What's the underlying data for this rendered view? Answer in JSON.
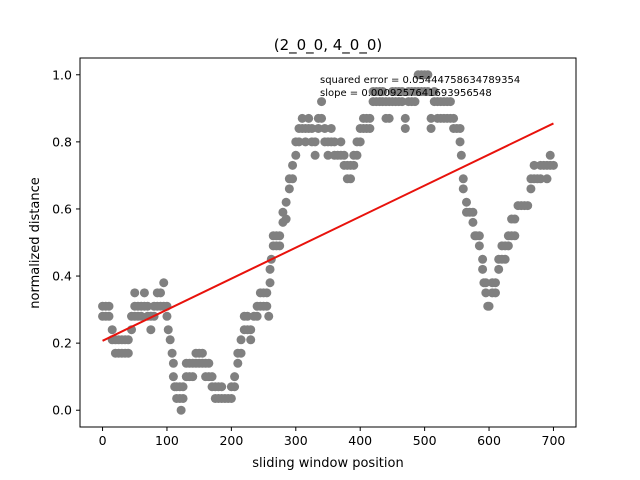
{
  "chart_data": {
    "type": "scatter",
    "title": "(2_0_0, 4_0_0)",
    "xlabel": "sliding window position",
    "ylabel": "normalized distance",
    "xlim": [
      -35,
      735
    ],
    "ylim": [
      -0.05,
      1.05
    ],
    "xticks": [
      0,
      100,
      200,
      300,
      400,
      500,
      600,
      700
    ],
    "yticks": [
      0.0,
      0.2,
      0.4,
      0.6,
      0.8,
      1.0
    ],
    "xtick_labels": [
      "0",
      "100",
      "200",
      "300",
      "400",
      "500",
      "600",
      "700"
    ],
    "ytick_labels": [
      "0.0",
      "0.2",
      "0.4",
      "0.6",
      "0.8",
      "1.0"
    ],
    "grid": false,
    "annotations": [
      "squared error = 0.05444758634789354",
      "slope = 0.0009257641693956548"
    ],
    "colors": {
      "points": "#808080",
      "fit": "#e8120c"
    },
    "fit_line": {
      "x": [
        0,
        700
      ],
      "y": [
        0.207,
        0.855
      ]
    },
    "points": [
      [
        0,
        0.31
      ],
      [
        0,
        0.28
      ],
      [
        5,
        0.31
      ],
      [
        5,
        0.28
      ],
      [
        10,
        0.31
      ],
      [
        10,
        0.28
      ],
      [
        15,
        0.24
      ],
      [
        15,
        0.21
      ],
      [
        20,
        0.21
      ],
      [
        20,
        0.17
      ],
      [
        25,
        0.17
      ],
      [
        25,
        0.21
      ],
      [
        30,
        0.21
      ],
      [
        30,
        0.17
      ],
      [
        35,
        0.21
      ],
      [
        35,
        0.17
      ],
      [
        40,
        0.21
      ],
      [
        40,
        0.17
      ],
      [
        45,
        0.24
      ],
      [
        45,
        0.28
      ],
      [
        50,
        0.31
      ],
      [
        50,
        0.35
      ],
      [
        50,
        0.28
      ],
      [
        55,
        0.31
      ],
      [
        55,
        0.28
      ],
      [
        60,
        0.31
      ],
      [
        60,
        0.28
      ],
      [
        65,
        0.35
      ],
      [
        65,
        0.31
      ],
      [
        70,
        0.31
      ],
      [
        70,
        0.28
      ],
      [
        75,
        0.28
      ],
      [
        75,
        0.24
      ],
      [
        80,
        0.31
      ],
      [
        80,
        0.28
      ],
      [
        85,
        0.35
      ],
      [
        85,
        0.31
      ],
      [
        90,
        0.35
      ],
      [
        90,
        0.31
      ],
      [
        95,
        0.38
      ],
      [
        95,
        0.31
      ],
      [
        100,
        0.31
      ],
      [
        100,
        0.28
      ],
      [
        102,
        0.24
      ],
      [
        105,
        0.21
      ],
      [
        108,
        0.17
      ],
      [
        110,
        0.14
      ],
      [
        110,
        0.1
      ],
      [
        112,
        0.07
      ],
      [
        115,
        0.07
      ],
      [
        115,
        0.035
      ],
      [
        120,
        0.07
      ],
      [
        120,
        0.035
      ],
      [
        122,
        0.0
      ],
      [
        125,
        0.07
      ],
      [
        125,
        0.035
      ],
      [
        130,
        0.1
      ],
      [
        130,
        0.14
      ],
      [
        135,
        0.1
      ],
      [
        135,
        0.14
      ],
      [
        140,
        0.14
      ],
      [
        140,
        0.1
      ],
      [
        145,
        0.17
      ],
      [
        145,
        0.14
      ],
      [
        150,
        0.17
      ],
      [
        150,
        0.14
      ],
      [
        155,
        0.14
      ],
      [
        155,
        0.17
      ],
      [
        160,
        0.14
      ],
      [
        160,
        0.1
      ],
      [
        165,
        0.14
      ],
      [
        165,
        0.1
      ],
      [
        170,
        0.1
      ],
      [
        170,
        0.07
      ],
      [
        175,
        0.07
      ],
      [
        175,
        0.035
      ],
      [
        180,
        0.07
      ],
      [
        180,
        0.035
      ],
      [
        185,
        0.07
      ],
      [
        185,
        0.035
      ],
      [
        190,
        0.035
      ],
      [
        195,
        0.035
      ],
      [
        200,
        0.07
      ],
      [
        200,
        0.035
      ],
      [
        205,
        0.07
      ],
      [
        205,
        0.1
      ],
      [
        210,
        0.14
      ],
      [
        210,
        0.17
      ],
      [
        215,
        0.21
      ],
      [
        215,
        0.17
      ],
      [
        220,
        0.24
      ],
      [
        220,
        0.28
      ],
      [
        225,
        0.28
      ],
      [
        225,
        0.24
      ],
      [
        230,
        0.21
      ],
      [
        230,
        0.24
      ],
      [
        235,
        0.28
      ],
      [
        240,
        0.28
      ],
      [
        240,
        0.31
      ],
      [
        245,
        0.31
      ],
      [
        245,
        0.35
      ],
      [
        250,
        0.35
      ],
      [
        250,
        0.31
      ],
      [
        255,
        0.31
      ],
      [
        255,
        0.35
      ],
      [
        258,
        0.28
      ],
      [
        260,
        0.38
      ],
      [
        260,
        0.42
      ],
      [
        262,
        0.45
      ],
      [
        265,
        0.49
      ],
      [
        265,
        0.52
      ],
      [
        270,
        0.52
      ],
      [
        270,
        0.49
      ],
      [
        275,
        0.49
      ],
      [
        275,
        0.52
      ],
      [
        280,
        0.56
      ],
      [
        280,
        0.59
      ],
      [
        285,
        0.57
      ],
      [
        285,
        0.62
      ],
      [
        290,
        0.66
      ],
      [
        290,
        0.69
      ],
      [
        295,
        0.69
      ],
      [
        295,
        0.73
      ],
      [
        300,
        0.76
      ],
      [
        300,
        0.8
      ],
      [
        305,
        0.84
      ],
      [
        305,
        0.8
      ],
      [
        310,
        0.84
      ],
      [
        310,
        0.87
      ],
      [
        315,
        0.84
      ],
      [
        315,
        0.8
      ],
      [
        320,
        0.84
      ],
      [
        320,
        0.87
      ],
      [
        325,
        0.8
      ],
      [
        325,
        0.84
      ],
      [
        330,
        0.76
      ],
      [
        330,
        0.8
      ],
      [
        335,
        0.84
      ],
      [
        335,
        0.87
      ],
      [
        340,
        0.92
      ],
      [
        340,
        0.87
      ],
      [
        345,
        0.84
      ],
      [
        345,
        0.8
      ],
      [
        350,
        0.76
      ],
      [
        350,
        0.8
      ],
      [
        355,
        0.84
      ],
      [
        355,
        0.8
      ],
      [
        360,
        0.76
      ],
      [
        360,
        0.8
      ],
      [
        365,
        0.76
      ],
      [
        370,
        0.76
      ],
      [
        370,
        0.8
      ],
      [
        375,
        0.76
      ],
      [
        375,
        0.73
      ],
      [
        380,
        0.73
      ],
      [
        380,
        0.69
      ],
      [
        385,
        0.73
      ],
      [
        385,
        0.69
      ],
      [
        390,
        0.73
      ],
      [
        390,
        0.76
      ],
      [
        395,
        0.76
      ],
      [
        395,
        0.8
      ],
      [
        400,
        0.8
      ],
      [
        400,
        0.84
      ],
      [
        405,
        0.84
      ],
      [
        405,
        0.87
      ],
      [
        410,
        0.84
      ],
      [
        410,
        0.87
      ],
      [
        415,
        0.84
      ],
      [
        415,
        0.87
      ],
      [
        420,
        0.92
      ],
      [
        420,
        0.95
      ],
      [
        425,
        0.92
      ],
      [
        425,
        0.95
      ],
      [
        430,
        0.92
      ],
      [
        430,
        0.95
      ],
      [
        435,
        0.92
      ],
      [
        435,
        0.95
      ],
      [
        440,
        0.87
      ],
      [
        440,
        0.92
      ],
      [
        445,
        0.92
      ],
      [
        445,
        0.87
      ],
      [
        450,
        0.95
      ],
      [
        450,
        0.92
      ],
      [
        455,
        0.95
      ],
      [
        455,
        0.92
      ],
      [
        460,
        0.92
      ],
      [
        460,
        0.95
      ],
      [
        465,
        0.92
      ],
      [
        465,
        0.95
      ],
      [
        470,
        0.87
      ],
      [
        470,
        0.84
      ],
      [
        475,
        0.92
      ],
      [
        475,
        0.95
      ],
      [
        480,
        0.92
      ],
      [
        480,
        0.95
      ],
      [
        485,
        0.95
      ],
      [
        485,
        0.92
      ],
      [
        490,
        1.0
      ],
      [
        490,
        0.95
      ],
      [
        495,
        1.0
      ],
      [
        495,
        0.95
      ],
      [
        500,
        1.0
      ],
      [
        500,
        0.95
      ],
      [
        505,
        0.95
      ],
      [
        505,
        1.0
      ],
      [
        510,
        0.87
      ],
      [
        510,
        0.84
      ],
      [
        515,
        0.92
      ],
      [
        515,
        0.95
      ],
      [
        520,
        0.92
      ],
      [
        520,
        0.87
      ],
      [
        525,
        0.92
      ],
      [
        525,
        0.87
      ],
      [
        530,
        0.87
      ],
      [
        530,
        0.92
      ],
      [
        535,
        0.92
      ],
      [
        535,
        0.87
      ],
      [
        540,
        0.87
      ],
      [
        540,
        0.92
      ],
      [
        545,
        0.84
      ],
      [
        545,
        0.87
      ],
      [
        550,
        0.84
      ],
      [
        555,
        0.84
      ],
      [
        555,
        0.8
      ],
      [
        557,
        0.76
      ],
      [
        560,
        0.69
      ],
      [
        560,
        0.66
      ],
      [
        565,
        0.62
      ],
      [
        565,
        0.59
      ],
      [
        570,
        0.59
      ],
      [
        575,
        0.59
      ],
      [
        575,
        0.56
      ],
      [
        578,
        0.52
      ],
      [
        580,
        0.52
      ],
      [
        585,
        0.52
      ],
      [
        585,
        0.49
      ],
      [
        590,
        0.45
      ],
      [
        590,
        0.42
      ],
      [
        592,
        0.38
      ],
      [
        595,
        0.38
      ],
      [
        595,
        0.35
      ],
      [
        598,
        0.31
      ],
      [
        600,
        0.31
      ],
      [
        605,
        0.38
      ],
      [
        605,
        0.35
      ],
      [
        610,
        0.38
      ],
      [
        610,
        0.35
      ],
      [
        615,
        0.42
      ],
      [
        615,
        0.45
      ],
      [
        620,
        0.45
      ],
      [
        620,
        0.49
      ],
      [
        625,
        0.49
      ],
      [
        625,
        0.45
      ],
      [
        630,
        0.52
      ],
      [
        630,
        0.49
      ],
      [
        635,
        0.57
      ],
      [
        635,
        0.52
      ],
      [
        640,
        0.57
      ],
      [
        640,
        0.52
      ],
      [
        645,
        0.61
      ],
      [
        650,
        0.61
      ],
      [
        655,
        0.61
      ],
      [
        660,
        0.61
      ],
      [
        665,
        0.66
      ],
      [
        665,
        0.69
      ],
      [
        670,
        0.69
      ],
      [
        670,
        0.73
      ],
      [
        675,
        0.69
      ],
      [
        680,
        0.69
      ],
      [
        680,
        0.73
      ],
      [
        685,
        0.73
      ],
      [
        690,
        0.73
      ],
      [
        690,
        0.69
      ],
      [
        695,
        0.76
      ],
      [
        695,
        0.73
      ],
      [
        700,
        0.73
      ]
    ]
  }
}
